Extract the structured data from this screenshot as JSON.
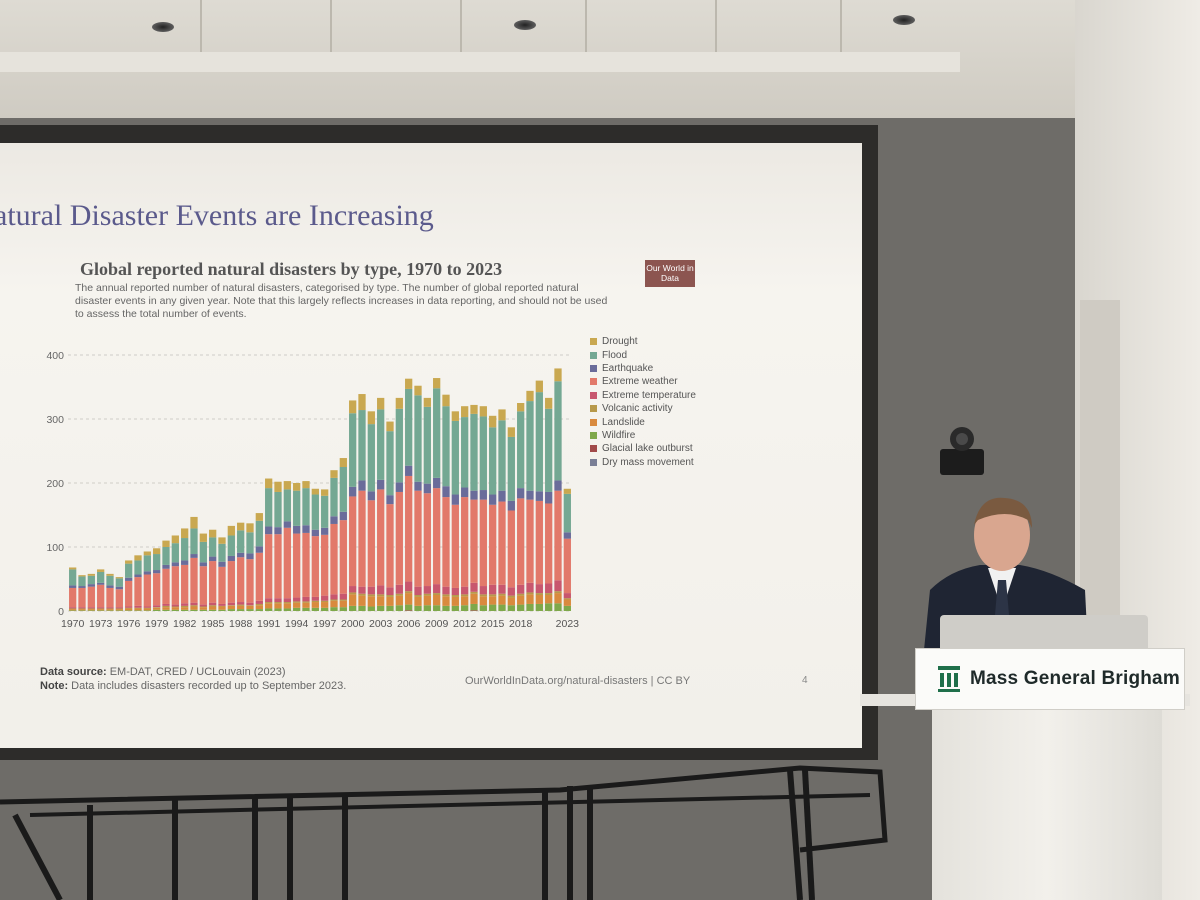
{
  "slide": {
    "title": "atural Disaster Events are Increasing",
    "chart_title": "Global reported natural disasters by type, 1970 to 2023",
    "chart_subtitle": "The annual reported number of natural disasters, categorised by type. The number of global reported natural disaster events in any given year. Note that this largely reflects increases in data reporting, and should not be used to assess the total number of events.",
    "logo_text": "Our World in Data",
    "source_label": "Data source:",
    "source_text": "EM-DAT, CRED / UCLouvain (2023)",
    "note_label": "Note:",
    "note_text": "Data includes disasters recorded up to September 2023.",
    "url_text": "OurWorldInData.org/natural-disasters | CC BY",
    "page_number": "4"
  },
  "sign": {
    "text": "Mass General Brigham"
  },
  "chart_data": {
    "type": "bar",
    "stacked": true,
    "title": "Global reported natural disasters by type, 1970 to 2023",
    "ylim": [
      0,
      450
    ],
    "y_ticks": [
      "0",
      "100",
      "200",
      "300",
      "400"
    ],
    "x_tick_labels": [
      "1970",
      "1973",
      "1976",
      "1979",
      "1982",
      "1985",
      "1988",
      "1991",
      "1994",
      "1997",
      "2000",
      "2003",
      "2006",
      "2009",
      "2012",
      "2015",
      "2018",
      "2023"
    ],
    "legend_position": "right",
    "grid": true,
    "years": [
      1970,
      1971,
      1972,
      1973,
      1974,
      1975,
      1976,
      1977,
      1978,
      1979,
      1980,
      1981,
      1982,
      1983,
      1984,
      1985,
      1986,
      1987,
      1988,
      1989,
      1990,
      1991,
      1992,
      1993,
      1994,
      1995,
      1996,
      1997,
      1998,
      1999,
      2000,
      2001,
      2002,
      2003,
      2004,
      2005,
      2006,
      2007,
      2008,
      2009,
      2010,
      2011,
      2012,
      2013,
      2014,
      2015,
      2016,
      2017,
      2018,
      2019,
      2020,
      2021,
      2022,
      2023
    ],
    "series": [
      {
        "name": "Drought",
        "color": "#c9a850",
        "values": [
          3,
          2,
          3,
          4,
          3,
          2,
          5,
          8,
          6,
          9,
          10,
          12,
          15,
          18,
          13,
          12,
          10,
          15,
          12,
          14,
          12,
          15,
          16,
          13,
          12,
          11,
          9,
          10,
          12,
          14,
          20,
          25,
          20,
          18,
          15,
          17,
          16,
          15,
          14,
          16,
          18,
          15,
          17,
          14,
          16,
          18,
          17,
          15,
          13,
          16,
          18,
          17,
          20,
          8
        ]
      },
      {
        "name": "Flood",
        "color": "#74a893",
        "values": [
          25,
          15,
          13,
          17,
          15,
          13,
          22,
          22,
          25,
          25,
          28,
          30,
          35,
          40,
          32,
          30,
          28,
          32,
          35,
          33,
          40,
          60,
          55,
          50,
          55,
          58,
          55,
          50,
          60,
          70,
          115,
          110,
          105,
          110,
          100,
          115,
          120,
          135,
          120,
          140,
          125,
          115,
          110,
          120,
          115,
          105,
          110,
          100,
          120,
          140,
          155,
          130,
          155,
          60
        ]
      },
      {
        "name": "Earthquake",
        "color": "#6a6c9a",
        "values": [
          4,
          3,
          4,
          3,
          4,
          4,
          5,
          4,
          5,
          5,
          6,
          6,
          7,
          6,
          6,
          7,
          8,
          8,
          7,
          9,
          10,
          12,
          11,
          10,
          12,
          12,
          10,
          11,
          12,
          13,
          15,
          16,
          14,
          15,
          14,
          15,
          16,
          14,
          15,
          16,
          17,
          16,
          15,
          14,
          15,
          16,
          17,
          15,
          16,
          14,
          15,
          18,
          16,
          10
        ]
      },
      {
        "name": "Extreme weather",
        "color": "#e2796a",
        "values": [
          30,
          30,
          32,
          35,
          30,
          28,
          40,
          45,
          50,
          50,
          55,
          60,
          60,
          70,
          60,
          65,
          58,
          65,
          70,
          68,
          75,
          100,
          100,
          110,
          100,
          100,
          95,
          95,
          110,
          115,
          140,
          150,
          135,
          150,
          130,
          145,
          165,
          150,
          145,
          150,
          140,
          130,
          140,
          130,
          135,
          125,
          130,
          120,
          135,
          130,
          130,
          125,
          140,
          85
        ]
      },
      {
        "name": "Extreme temperature",
        "color": "#c8576e",
        "values": [
          2,
          2,
          2,
          2,
          2,
          2,
          2,
          3,
          2,
          3,
          3,
          3,
          4,
          4,
          3,
          4,
          3,
          4,
          4,
          4,
          5,
          6,
          6,
          6,
          6,
          7,
          6,
          8,
          8,
          9,
          10,
          11,
          12,
          14,
          12,
          14,
          15,
          13,
          12,
          14,
          12,
          11,
          12,
          14,
          13,
          15,
          14,
          13,
          14,
          15,
          14,
          15,
          17,
          8
        ]
      },
      {
        "name": "Volcanic activity",
        "color": "#b7994a",
        "values": [
          1,
          1,
          1,
          1,
          1,
          1,
          1,
          1,
          1,
          1,
          2,
          1,
          2,
          2,
          1,
          2,
          1,
          1,
          2,
          1,
          2,
          2,
          2,
          2,
          2,
          2,
          2,
          2,
          2,
          2,
          3,
          3,
          3,
          3,
          3,
          3,
          3,
          3,
          3,
          3,
          3,
          3,
          3,
          3,
          3,
          3,
          3,
          3,
          3,
          3,
          3,
          3,
          3,
          2
        ]
      },
      {
        "name": "Landslide",
        "color": "#d98a3e",
        "values": [
          2,
          2,
          2,
          2,
          2,
          2,
          3,
          3,
          3,
          3,
          4,
          4,
          4,
          5,
          4,
          5,
          5,
          5,
          5,
          5,
          6,
          8,
          8,
          8,
          8,
          8,
          9,
          9,
          10,
          10,
          18,
          16,
          16,
          15,
          14,
          15,
          18,
          14,
          15,
          16,
          15,
          14,
          14,
          16,
          14,
          13,
          14,
          12,
          14,
          15,
          14,
          13,
          16,
          10
        ]
      },
      {
        "name": "Wildfire",
        "color": "#7fa84a",
        "values": [
          1,
          1,
          1,
          1,
          1,
          1,
          1,
          1,
          1,
          2,
          2,
          2,
          2,
          2,
          2,
          2,
          2,
          3,
          3,
          3,
          3,
          4,
          4,
          4,
          5,
          5,
          5,
          5,
          6,
          6,
          8,
          8,
          7,
          8,
          8,
          9,
          9,
          8,
          9,
          9,
          8,
          8,
          9,
          10,
          9,
          10,
          10,
          9,
          10,
          11,
          11,
          12,
          12,
          8
        ]
      },
      {
        "name": "Glacial lake outburst",
        "color": "#a14a4a",
        "values": [
          0,
          0,
          0,
          0,
          0,
          0,
          0,
          0,
          0,
          0,
          0,
          0,
          0,
          0,
          0,
          0,
          0,
          0,
          0,
          0,
          0,
          0,
          0,
          0,
          0,
          0,
          0,
          0,
          0,
          0,
          0,
          0,
          0,
          0,
          0,
          0,
          1,
          0,
          0,
          0,
          0,
          0,
          0,
          1,
          0,
          0,
          0,
          0,
          0,
          0,
          0,
          0,
          0,
          0
        ]
      },
      {
        "name": "Dry mass movement",
        "color": "#7a7f96",
        "values": [
          0,
          0,
          0,
          0,
          0,
          0,
          0,
          0,
          0,
          0,
          0,
          0,
          0,
          0,
          0,
          0,
          0,
          0,
          0,
          0,
          0,
          0,
          0,
          0,
          0,
          0,
          0,
          0,
          0,
          0,
          0,
          0,
          0,
          0,
          0,
          0,
          0,
          0,
          0,
          0,
          0,
          0,
          0,
          0,
          0,
          0,
          0,
          0,
          0,
          0,
          0,
          0,
          0,
          0
        ]
      }
    ]
  }
}
